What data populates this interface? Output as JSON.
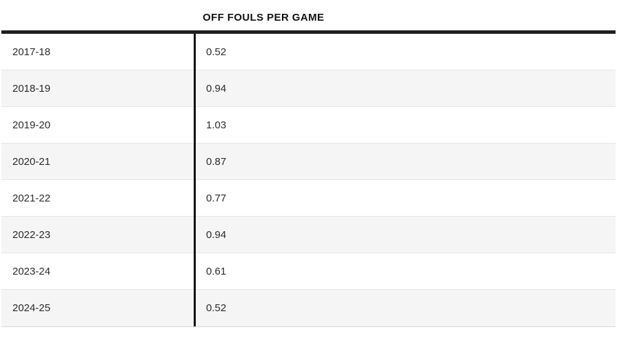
{
  "table": {
    "value_column_header": "OFF FOULS PER GAME",
    "rows": [
      {
        "season": "2017-18",
        "value": "0.52"
      },
      {
        "season": "2018-19",
        "value": "0.94"
      },
      {
        "season": "2019-20",
        "value": "1.03"
      },
      {
        "season": "2020-21",
        "value": "0.87"
      },
      {
        "season": "2021-22",
        "value": "0.77"
      },
      {
        "season": "2022-23",
        "value": "0.94"
      },
      {
        "season": "2023-24",
        "value": "0.61"
      },
      {
        "season": "2024-25",
        "value": "0.52"
      }
    ]
  },
  "chart_data": {
    "type": "table",
    "title": "OFF FOULS PER GAME",
    "categories": [
      "2017-18",
      "2018-19",
      "2019-20",
      "2020-21",
      "2021-22",
      "2022-23",
      "2023-24",
      "2024-25"
    ],
    "values": [
      0.52,
      0.94,
      1.03,
      0.87,
      0.77,
      0.94,
      0.61,
      0.52
    ],
    "legend_position": "none",
    "notes": "Zebra-striped two-column stats table; left column seasons, right column off fouls per game"
  },
  "colors": {
    "top_rule": "#1f1f1f",
    "column_divider": "#0f0f0f",
    "stripe_row_bg": "#f5f5f5",
    "plain_row_bg": "#ffffff",
    "row_separator": "#e5e5e5",
    "bottom_rule": "#d8d8d8",
    "header_text": "#111111",
    "cell_text": "#2b2b2b"
  }
}
